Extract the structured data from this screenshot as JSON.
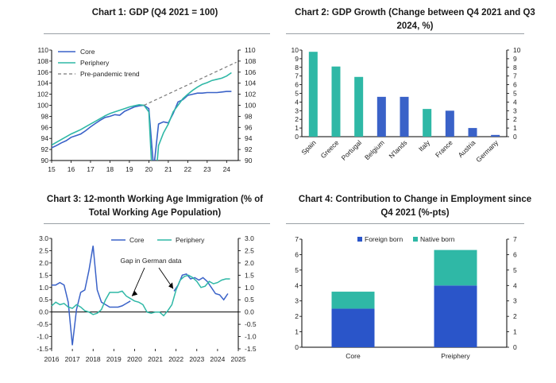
{
  "colors": {
    "core": "#3a62c8",
    "periphery": "#2fb8a6",
    "trend": "#7a7a7a",
    "foreign": "#2a55c9",
    "native": "#2fb8a6",
    "axis": "#000000"
  },
  "charts": [
    {
      "title": "Chart 1: GDP (Q4 2021 = 100)",
      "chart_data": {
        "type": "line",
        "title": "Chart 1: GDP (Q4 2021 = 100)",
        "xticks": [
          "15",
          "16",
          "17",
          "18",
          "19",
          "20",
          "21",
          "22",
          "23",
          "24"
        ],
        "xlim": [
          2015,
          2024.6
        ],
        "ylim": [
          90,
          110
        ],
        "yticks": [
          "90",
          "92",
          "94",
          "96",
          "98",
          "100",
          "102",
          "104",
          "106",
          "108",
          "110"
        ],
        "legend": "top-left",
        "series": [
          {
            "name": "Core",
            "color_key": "core",
            "x": [
              2015,
              2015.25,
              2015.5,
              2015.75,
              2016,
              2016.25,
              2016.5,
              2016.75,
              2017,
              2017.25,
              2017.5,
              2017.75,
              2018,
              2018.25,
              2018.5,
              2018.75,
              2019,
              2019.25,
              2019.5,
              2019.75,
              2020,
              2020.25,
              2020.5,
              2020.75,
              2021,
              2021.25,
              2021.5,
              2021.75,
              2022,
              2022.25,
              2022.5,
              2022.75,
              2023,
              2023.25,
              2023.5,
              2023.75,
              2024,
              2024.25
            ],
            "y": [
              92.3,
              92.7,
              93.2,
              93.6,
              94.2,
              94.5,
              94.8,
              95.4,
              96.1,
              96.7,
              97.3,
              97.8,
              98.0,
              98.3,
              98.2,
              98.9,
              99.3,
              99.7,
              99.9,
              100.0,
              99.4,
              88.5,
              96.6,
              97.0,
              96.8,
              98.5,
              100.6,
              101.0,
              101.8,
              102.0,
              102.2,
              102.2,
              102.3,
              102.3,
              102.3,
              102.4,
              102.5,
              102.5
            ]
          },
          {
            "name": "Periphery",
            "color_key": "periphery",
            "x": [
              2015,
              2015.25,
              2015.5,
              2015.75,
              2016,
              2016.25,
              2016.5,
              2016.75,
              2017,
              2017.25,
              2017.5,
              2017.75,
              2018,
              2018.25,
              2018.5,
              2018.75,
              2019,
              2019.25,
              2019.5,
              2019.75,
              2020,
              2020.25,
              2020.5,
              2020.75,
              2021,
              2021.25,
              2021.5,
              2021.75,
              2022,
              2022.25,
              2022.5,
              2022.75,
              2023,
              2023.25,
              2023.5,
              2023.75,
              2024,
              2024.25
            ],
            "y": [
              92.8,
              93.3,
              93.8,
              94.3,
              94.8,
              95.2,
              95.6,
              96.1,
              96.6,
              97.1,
              97.6,
              98.1,
              98.5,
              98.8,
              99.1,
              99.4,
              99.7,
              99.9,
              100.1,
              100.0,
              98.8,
              82.0,
              92.7,
              95.0,
              96.6,
              98.8,
              100.0,
              101.2,
              102.0,
              102.7,
              103.3,
              103.8,
              104.1,
              104.5,
              104.7,
              104.9,
              105.3,
              105.9
            ]
          },
          {
            "name": "Pre-pandemic trend",
            "color_key": "trend",
            "dashed": true,
            "x": [
              2019.75,
              2024.5
            ],
            "y": [
              100.0,
              107.8
            ]
          }
        ]
      }
    },
    {
      "title": "Chart 2: GDP Growth (Change between Q4 2021 and Q3 2024, %)",
      "chart_data": {
        "type": "bar",
        "title": "Chart 2: GDP Growth (Change between Q4 2021 and Q3 2024, %)",
        "categories": [
          "Spain",
          "Greece",
          "Portugal",
          "Belgium",
          "N'lands",
          "Italy",
          "France",
          "Austria",
          "Germany"
        ],
        "values": [
          9.8,
          8.1,
          6.9,
          4.6,
          4.6,
          3.2,
          3.0,
          1.0,
          0.2
        ],
        "bar_colors": [
          "periphery",
          "periphery",
          "periphery",
          "core",
          "core",
          "periphery",
          "core",
          "core",
          "core"
        ],
        "ylim": [
          0,
          10
        ],
        "yticks": [
          "0",
          "1",
          "2",
          "3",
          "4",
          "5",
          "6",
          "7",
          "8",
          "9",
          "10"
        ]
      }
    },
    {
      "title": "Chart 3: 12-month Working Age Immigration (% of Total Working Age Population)",
      "annotation": "Gap in German data",
      "chart_data": {
        "type": "line",
        "title": "Chart 3: 12-month Working Age Immigration (% of Total Working Age Population)",
        "xticks": [
          "2016",
          "2017",
          "2018",
          "2019",
          "2020",
          "2021",
          "2022",
          "2023",
          "2024",
          "2025"
        ],
        "xlim": [
          2016,
          2025
        ],
        "ylim": [
          -1.5,
          3.0
        ],
        "yticks": [
          "-1.5",
          "-1.0",
          "-0.5",
          "0.0",
          "0.5",
          "1.0",
          "1.5",
          "2.0",
          "2.5",
          "3.0"
        ],
        "legend": "top-center",
        "series": [
          {
            "name": "Core",
            "color_key": "core",
            "segments": [
              {
                "x": [
                  2016,
                  2016.2,
                  2016.4,
                  2016.6,
                  2016.8,
                  2017.0,
                  2017.2,
                  2017.4,
                  2017.6,
                  2017.8,
                  2018.0,
                  2018.2,
                  2018.4,
                  2018.6,
                  2018.8,
                  2019.0,
                  2019.2,
                  2019.4,
                  2019.6,
                  2019.8
                ],
                "y": [
                  1.1,
                  1.1,
                  1.2,
                  1.1,
                  0.4,
                  -1.35,
                  0.1,
                  0.8,
                  0.9,
                  1.7,
                  2.7,
                  0.9,
                  0.4,
                  0.3,
                  0.2,
                  0.2,
                  0.2,
                  0.25,
                  0.35,
                  0.45
                ]
              },
              {
                "x": [
                  2021.9,
                  2022.1,
                  2022.3,
                  2022.5,
                  2022.7,
                  2022.9,
                  2023.1,
                  2023.3,
                  2023.5,
                  2023.7,
                  2023.9,
                  2024.1,
                  2024.3,
                  2024.5
                ],
                "y": [
                  0.85,
                  1.1,
                  1.5,
                  1.55,
                  1.35,
                  1.4,
                  1.3,
                  1.4,
                  1.25,
                  1.0,
                  0.75,
                  0.7,
                  0.5,
                  0.75
                ]
              }
            ]
          },
          {
            "name": "Periphery",
            "color_key": "periphery",
            "segments": [
              {
                "x": [
                  2016,
                  2016.2,
                  2016.4,
                  2016.6,
                  2016.8,
                  2017.0,
                  2017.2,
                  2017.4,
                  2017.6,
                  2017.8,
                  2018.0,
                  2018.2,
                  2018.4,
                  2018.6,
                  2018.8,
                  2019.0,
                  2019.2,
                  2019.4,
                  2019.6,
                  2019.8,
                  2020.0,
                  2020.2,
                  2020.4,
                  2020.6,
                  2020.8,
                  2021.0,
                  2021.2,
                  2021.4,
                  2021.6,
                  2021.8,
                  2022.0,
                  2022.2,
                  2022.4,
                  2022.6,
                  2022.8,
                  2023.0,
                  2023.2,
                  2023.4,
                  2023.6,
                  2023.8,
                  2024.0,
                  2024.2,
                  2024.4,
                  2024.6
                ],
                "y": [
                  0.25,
                  0.4,
                  0.3,
                  0.35,
                  0.2,
                  0.15,
                  0.3,
                  0.2,
                  0.05,
                  0.0,
                  -0.1,
                  -0.05,
                  0.1,
                  0.5,
                  0.8,
                  0.8,
                  0.8,
                  0.85,
                  0.65,
                  0.55,
                  0.45,
                  0.4,
                  0.3,
                  0.0,
                  -0.05,
                  0.0,
                  0.0,
                  -0.15,
                  0.05,
                  0.3,
                  0.9,
                  1.3,
                  1.45,
                  1.5,
                  1.4,
                  1.25,
                  1.0,
                  1.05,
                  1.25,
                  1.15,
                  1.2,
                  1.3,
                  1.35,
                  1.35
                ]
              }
            ]
          }
        ]
      }
    },
    {
      "title": "Chart 4: Contribution to Change in Employment since Q4 2021 (%-pts)",
      "chart_data": {
        "type": "bar",
        "stacked": true,
        "title": "Chart 4: Contribution to Change in Employment since Q4 2021 (%-pts)",
        "categories": [
          "Core",
          "Preiphery"
        ],
        "series": [
          {
            "name": "Foreign born",
            "color_key": "foreign",
            "values": [
              2.5,
              4.0
            ]
          },
          {
            "name": "Native born",
            "color_key": "native",
            "values": [
              1.1,
              2.3
            ]
          }
        ],
        "ylim": [
          0,
          7
        ],
        "yticks": [
          "0",
          "1",
          "2",
          "3",
          "4",
          "5",
          "6",
          "7"
        ],
        "legend": "top-center"
      }
    }
  ]
}
